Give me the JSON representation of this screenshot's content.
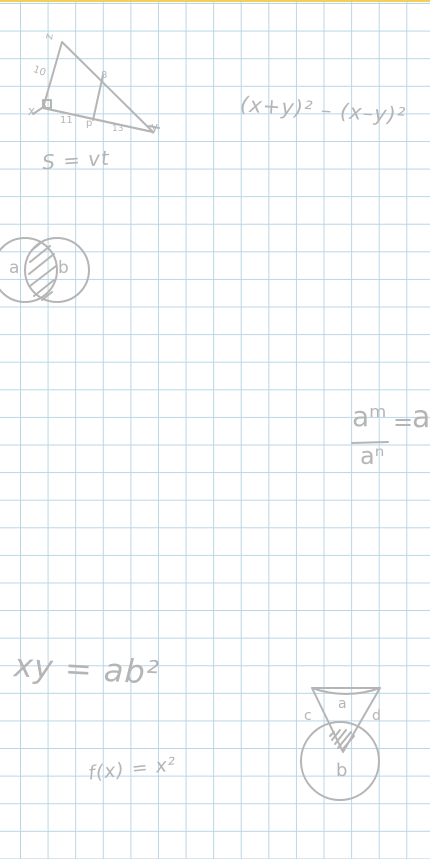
{
  "background": {
    "paper_color": "#ffffff",
    "grid_color": "#b8d6e6",
    "top_border_color": "#f1cf5a",
    "ink_color": "#b5b5b5"
  },
  "doodles": {
    "triangle": {
      "vertex_top": "z",
      "vertex_left": "x",
      "vertex_right": "y",
      "label_left_side": "10",
      "label_mid": "8",
      "label_bottom_left": "11",
      "label_p": "p",
      "label_bottom_right": "13"
    },
    "speed_formula": "S = vt",
    "square_difference": "(x+y)² – (x–y)²",
    "venn": {
      "left": "a",
      "right": "b"
    },
    "power_quotient": {
      "numerator": "aᵐ",
      "denominator": "aⁿ",
      "equals": "=",
      "result": "a"
    },
    "xy_formula": "xy = ab²",
    "function": "f(x) = x²",
    "cone": {
      "top": "a",
      "left": "c",
      "right": "d",
      "bottom": "b"
    }
  }
}
